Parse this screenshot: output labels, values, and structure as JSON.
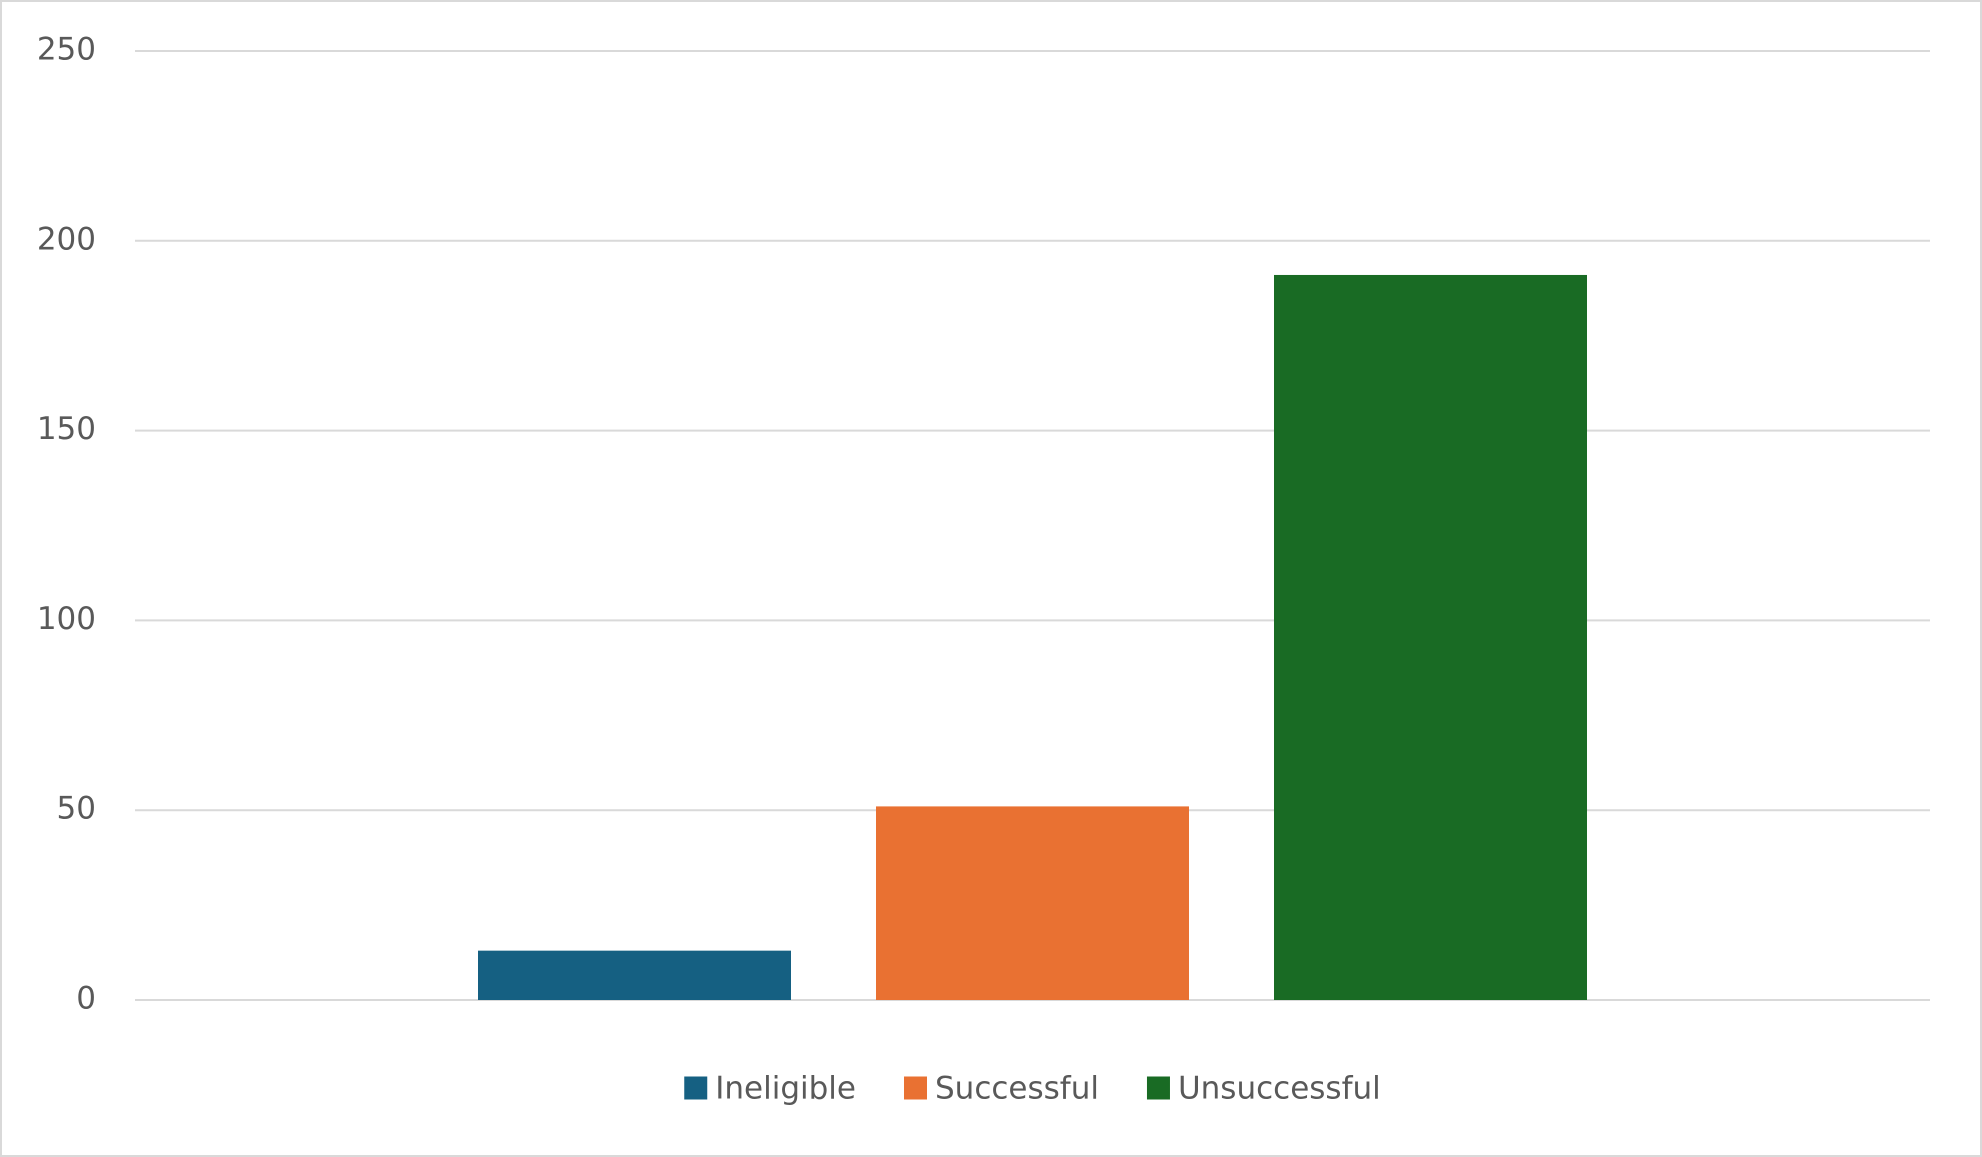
{
  "chart_data": {
    "type": "bar",
    "categories": [
      null
    ],
    "series": [
      {
        "name": "Ineligible",
        "color": "#156082",
        "values": [
          13
        ]
      },
      {
        "name": "Successful",
        "color": "#e97132",
        "values": [
          51
        ]
      },
      {
        "name": "Unsuccessful",
        "color": "#196b24",
        "values": [
          191
        ]
      }
    ],
    "ylim": [
      0,
      250
    ],
    "yticks": [
      0,
      50,
      100,
      150,
      200,
      250
    ],
    "grid": true,
    "legend": "bottom"
  }
}
